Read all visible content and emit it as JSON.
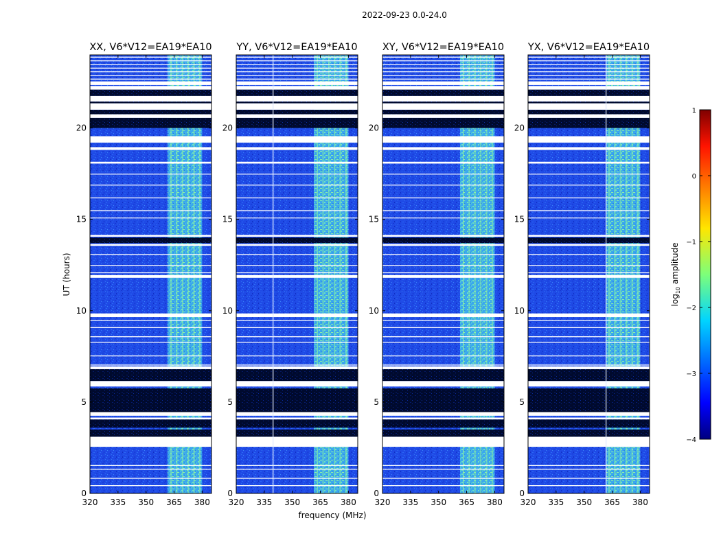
{
  "chart_data": {
    "type": "heatmap",
    "suptitle": "2022-09-23 0.0-24.0",
    "xlabel": "frequency (MHz)",
    "ylabel": "UT (hours)",
    "xlim": [
      320,
      385
    ],
    "ylim": [
      0,
      24
    ],
    "xticks": [
      "320",
      "335",
      "350",
      "365",
      "380"
    ],
    "xtick_values": [
      320,
      335,
      350,
      365,
      380
    ],
    "yticks": [
      "0",
      "5",
      "10",
      "15",
      "20"
    ],
    "ytick_values": [
      0,
      5,
      10,
      15,
      20
    ],
    "panels": [
      {
        "title": "XX, V6*V12=EA19*EA10",
        "band_start_mhz": 361.5,
        "band_end_mhz": 380,
        "vertical_lines_mhz": []
      },
      {
        "title": "YY, V6*V12=EA19*EA10",
        "band_start_mhz": 361.5,
        "band_end_mhz": 380,
        "vertical_lines_mhz": [
          339.5
        ]
      },
      {
        "title": "XY, V6*V12=EA19*EA10",
        "band_start_mhz": 361.5,
        "band_end_mhz": 380,
        "vertical_lines_mhz": []
      },
      {
        "title": "YX, V6*V12=EA19*EA10",
        "band_start_mhz": 361.5,
        "band_end_mhz": 380,
        "vertical_lines_mhz": [
          361.5
        ]
      }
    ],
    "flagged_ut_ranges": [
      [
        2.55,
        3.1
      ],
      [
        4.05,
        4.15
      ],
      [
        4.25,
        4.45
      ],
      [
        5.85,
        6.15
      ],
      [
        6.8,
        6.95
      ],
      [
        9.65,
        9.85
      ],
      [
        11.8,
        11.95
      ],
      [
        13.55,
        13.65
      ],
      [
        14.05,
        14.15
      ],
      [
        18.05,
        18.15
      ],
      [
        18.8,
        18.95
      ],
      [
        19.2,
        19.55
      ],
      [
        20.55,
        20.75
      ],
      [
        21.0,
        21.35
      ],
      [
        21.45,
        21.75
      ],
      [
        22.1,
        22.3
      ],
      [
        22.35,
        22.55
      ]
    ],
    "dark_ut_ranges": [
      [
        3.1,
        3.5
      ],
      [
        3.6,
        4.05
      ],
      [
        4.45,
        5.75
      ],
      [
        6.15,
        6.8
      ],
      [
        13.7,
        14.0
      ],
      [
        20.0,
        20.55
      ],
      [
        20.75,
        21.0
      ],
      [
        21.35,
        21.45
      ],
      [
        21.75,
        22.1
      ]
    ],
    "thin_gap_ut": [
      0.45,
      0.85,
      1.35,
      1.55,
      7.05,
      7.55,
      8.3,
      8.6,
      9.1,
      9.5,
      12.1,
      12.5,
      13.1,
      15.1,
      15.5,
      16.2,
      16.9,
      17.5,
      22.7,
      22.9,
      23.1,
      23.3,
      23.5,
      23.7,
      23.9
    ],
    "colorbar": {
      "label": "log",
      "label_sub": "10",
      "label_rest": " amplitude",
      "min": -4,
      "max": 1,
      "ticks": [
        "1",
        "0",
        "−1",
        "−2",
        "−3",
        "−4"
      ],
      "tick_values": [
        1,
        0,
        -1,
        -2,
        -3,
        -4
      ],
      "colormap": [
        "#00007f",
        "#0000ff",
        "#007fff",
        "#00ffff",
        "#7fff7f",
        "#ffff00",
        "#ff7f00",
        "#ff0000",
        "#7f0000"
      ]
    },
    "colors": {
      "background_low": "#1f49ea",
      "band_mid": "#5dd6c3",
      "dark_flag": "#000a2e",
      "flag": "#ffffff"
    }
  }
}
